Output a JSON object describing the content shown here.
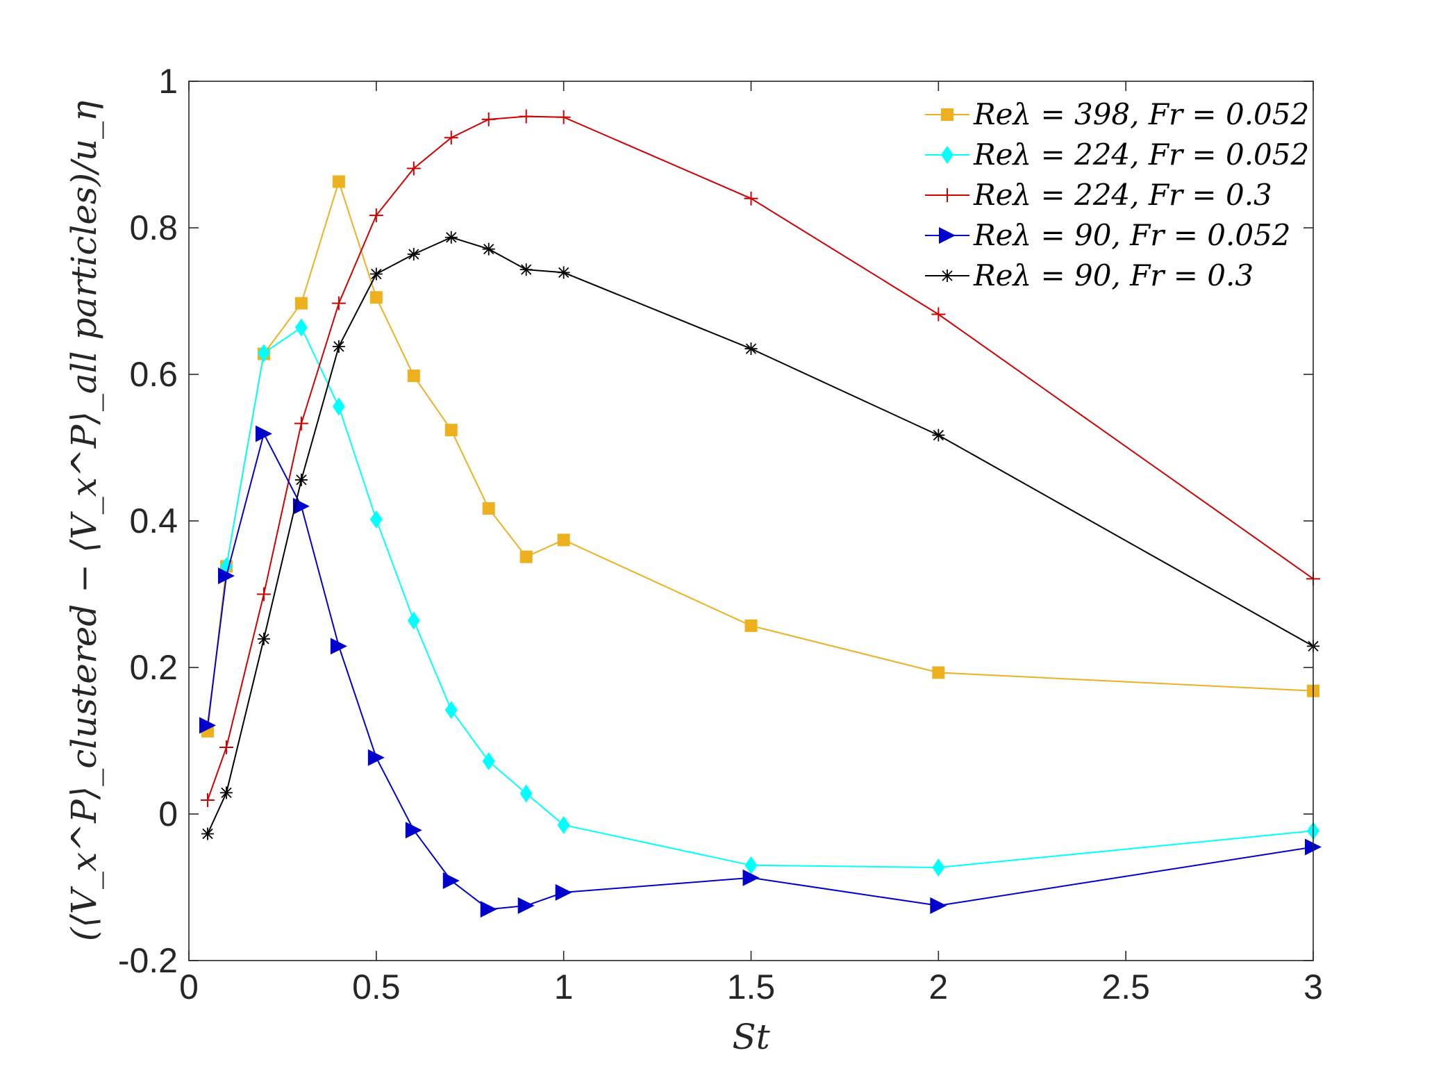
{
  "chart_data": {
    "type": "line",
    "title": "",
    "xlabel": "St",
    "ylabel": "(⟨V_x^P⟩_clustered − ⟨V_x^P⟩_all particles)/u_η",
    "xlim": [
      0,
      3
    ],
    "ylim": [
      -0.2,
      1
    ],
    "grid": false,
    "legend_position": "top-right",
    "x_ticks": [
      0,
      0.5,
      1,
      1.5,
      2,
      2.5,
      3
    ],
    "x_tick_labels": [
      "0",
      "0.5",
      "1",
      "1.5",
      "2",
      "2.5",
      "3"
    ],
    "y_ticks": [
      -0.2,
      0,
      0.2,
      0.4,
      0.6,
      0.8,
      1
    ],
    "y_tick_labels": [
      "-0.2",
      "0",
      "0.2",
      "0.4",
      "0.6",
      "0.8",
      "1"
    ],
    "series": [
      {
        "name": "Reλ = 398, Fr = 0.052",
        "color": "#EDB120",
        "marker": "square",
        "x": [
          0.05,
          0.1,
          0.2,
          0.3,
          0.4,
          0.5,
          0.6,
          0.7,
          0.8,
          0.9,
          1,
          1.5,
          2,
          3
        ],
        "y": [
          0.113,
          0.338,
          0.628,
          0.697,
          0.863,
          0.705,
          0.598,
          0.524,
          0.417,
          0.351,
          0.374,
          0.257,
          0.193,
          0.168
        ]
      },
      {
        "name": "Reλ = 224, Fr = 0.052",
        "color": "#00FFFF",
        "marker": "diamond",
        "x": [
          0.1,
          0.2,
          0.3,
          0.4,
          0.5,
          0.6,
          0.7,
          0.8,
          0.9,
          1,
          1.5,
          2,
          3
        ],
        "y": [
          0.338,
          0.629,
          0.664,
          0.556,
          0.402,
          0.264,
          0.142,
          0.072,
          0.028,
          -0.015,
          -0.07,
          -0.073,
          -0.023
        ]
      },
      {
        "name": "Reλ = 224, Fr = 0.3",
        "color": "#D10000",
        "marker": "plus",
        "x": [
          0.05,
          0.1,
          0.2,
          0.3,
          0.4,
          0.5,
          0.6,
          0.7,
          0.8,
          0.9,
          1,
          1.5,
          2,
          3
        ],
        "y": [
          0.019,
          0.091,
          0.3,
          0.533,
          0.697,
          0.817,
          0.881,
          0.923,
          0.948,
          0.952,
          0.951,
          0.84,
          0.682,
          0.321
        ]
      },
      {
        "name": "Reλ = 90, Fr = 0.052",
        "color": "#0000CD",
        "marker": "triangle-right",
        "x": [
          0.05,
          0.1,
          0.2,
          0.3,
          0.4,
          0.5,
          0.6,
          0.7,
          0.8,
          0.9,
          1,
          1.5,
          2,
          3
        ],
        "y": [
          0.121,
          0.325,
          0.519,
          0.42,
          0.229,
          0.077,
          -0.022,
          -0.091,
          -0.13,
          -0.125,
          -0.107,
          -0.087,
          -0.125,
          -0.045
        ]
      },
      {
        "name": "Reλ = 90, Fr = 0.3",
        "color": "#000000",
        "marker": "asterisk",
        "x": [
          0.05,
          0.1,
          0.2,
          0.3,
          0.4,
          0.5,
          0.6,
          0.7,
          0.8,
          0.9,
          1,
          1.5,
          2,
          3
        ],
        "y": [
          -0.027,
          0.029,
          0.239,
          0.456,
          0.638,
          0.737,
          0.764,
          0.787,
          0.771,
          0.743,
          0.739,
          0.635,
          0.517,
          0.229
        ]
      }
    ]
  }
}
